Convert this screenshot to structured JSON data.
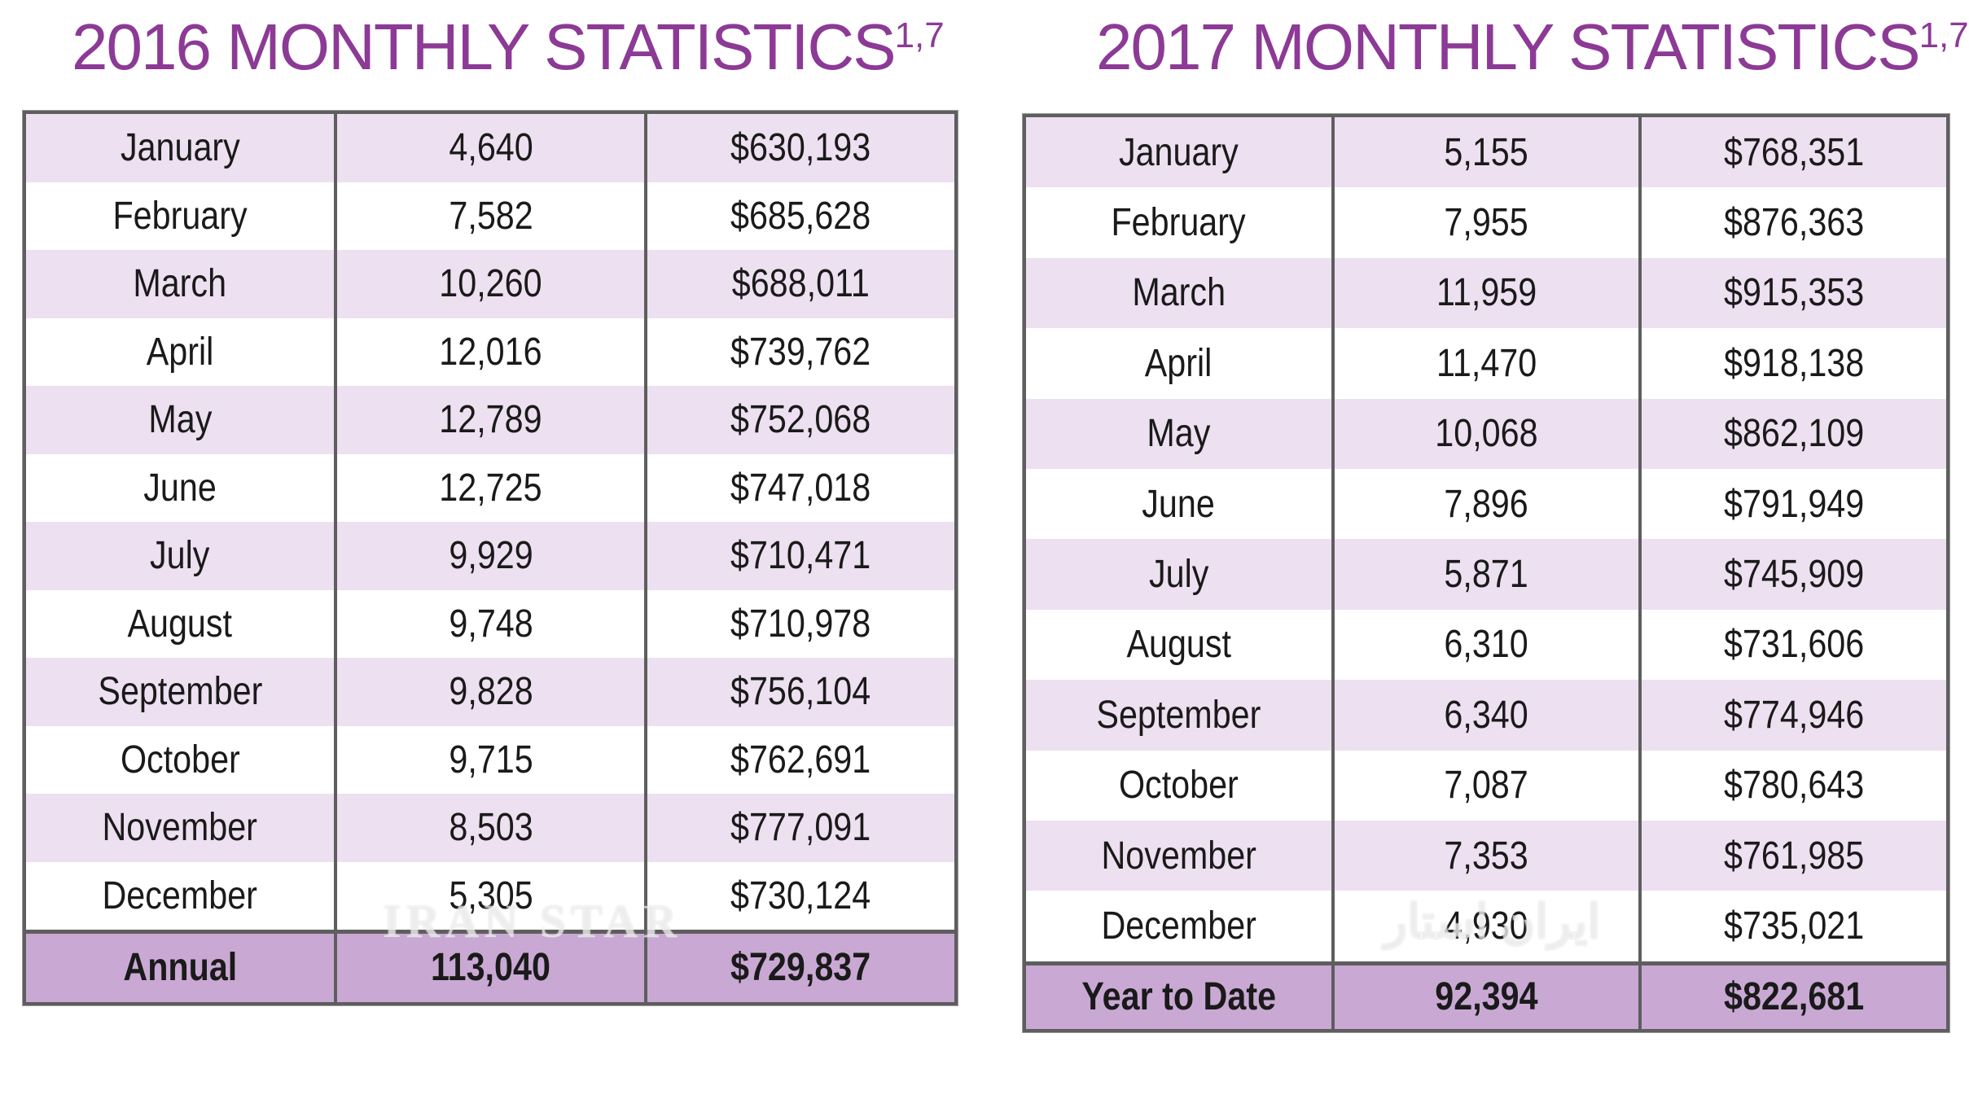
{
  "tables": [
    {
      "title": "2016 MONTHLY STATISTICS",
      "superscript": "1,7",
      "rows": [
        [
          "January",
          "4,640",
          "$630,193"
        ],
        [
          "February",
          "7,582",
          "$685,628"
        ],
        [
          "March",
          "10,260",
          "$688,011"
        ],
        [
          "April",
          "12,016",
          "$739,762"
        ],
        [
          "May",
          "12,789",
          "$752,068"
        ],
        [
          "June",
          "12,725",
          "$747,018"
        ],
        [
          "July",
          "9,929",
          "$710,471"
        ],
        [
          "August",
          "9,748",
          "$710,978"
        ],
        [
          "September",
          "9,828",
          "$756,104"
        ],
        [
          "October",
          "9,715",
          "$762,691"
        ],
        [
          "November",
          "8,503",
          "$777,091"
        ],
        [
          "December",
          "5,305",
          "$730,124"
        ]
      ],
      "total": [
        "Annual",
        "113,040",
        "$729,837"
      ]
    },
    {
      "title": "2017 MONTHLY STATISTICS",
      "superscript": "1,7",
      "rows": [
        [
          "January",
          "5,155",
          "$768,351"
        ],
        [
          "February",
          "7,955",
          "$876,363"
        ],
        [
          "March",
          "11,959",
          "$915,353"
        ],
        [
          "April",
          "11,470",
          "$918,138"
        ],
        [
          "May",
          "10,068",
          "$862,109"
        ],
        [
          "June",
          "7,896",
          "$791,949"
        ],
        [
          "July",
          "5,871",
          "$745,909"
        ],
        [
          "August",
          "6,310",
          "$731,606"
        ],
        [
          "September",
          "6,340",
          "$774,946"
        ],
        [
          "October",
          "7,087",
          "$780,643"
        ],
        [
          "November",
          "7,353",
          "$761,985"
        ],
        [
          "December",
          "4,930",
          "$735,021"
        ]
      ],
      "total": [
        "Year to Date",
        "92,394",
        "$822,681"
      ]
    }
  ],
  "watermark": {
    "latin": "IRAN STAR",
    "persian": "ایران استار"
  },
  "colors": {
    "title": "#8c3a96",
    "row_shade": "#ede0f0",
    "total_shade": "#c9a9d4",
    "border": "#5e5e5e"
  }
}
